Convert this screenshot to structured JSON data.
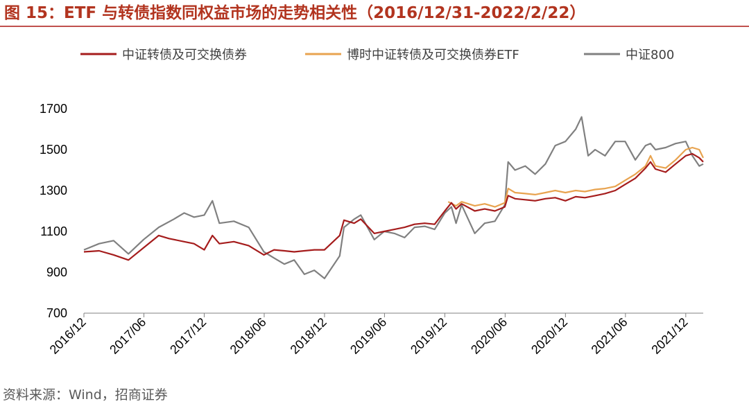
{
  "figure": {
    "title": "图 15：ETF 与转债指数同权益市场的走势相关性（2016/12/31-2022/2/22）",
    "source": "资料来源：Wind，招商证券"
  },
  "chart_data": {
    "type": "line",
    "title": "图 15：ETF 与转债指数同权益市场的走势相关性（2016/12/31-2022/2/22）",
    "xlabel": "",
    "ylabel": "",
    "x_ticks": [
      "2016/12",
      "2017/06",
      "2017/12",
      "2018/06",
      "2018/12",
      "2019/06",
      "2019/12",
      "2020/06",
      "2020/12",
      "2021/06",
      "2021/12"
    ],
    "xlim": [
      "2016/12/31",
      "2022/02/22"
    ],
    "ylim": [
      700,
      1700
    ],
    "y_ticks": [
      700,
      900,
      1100,
      1300,
      1500,
      1700
    ],
    "grid": false,
    "legend_position": "top",
    "series": [
      {
        "name": "中证转债及可交换债券",
        "color": "#a51c1c",
        "points": [
          [
            "2016/12/31",
            1000
          ],
          [
            "2017/02/15",
            1005
          ],
          [
            "2017/03/31",
            985
          ],
          [
            "2017/05/15",
            960
          ],
          [
            "2017/06/30",
            1020
          ],
          [
            "2017/08/15",
            1080
          ],
          [
            "2017/09/15",
            1065
          ],
          [
            "2017/10/31",
            1050
          ],
          [
            "2017/11/30",
            1040
          ],
          [
            "2017/12/31",
            1010
          ],
          [
            "2018/01/25",
            1080
          ],
          [
            "2018/02/15",
            1040
          ],
          [
            "2018/03/31",
            1050
          ],
          [
            "2018/05/15",
            1030
          ],
          [
            "2018/06/30",
            985
          ],
          [
            "2018/07/31",
            1010
          ],
          [
            "2018/08/31",
            1005
          ],
          [
            "2018/09/30",
            1000
          ],
          [
            "2018/10/31",
            1005
          ],
          [
            "2018/11/30",
            1010
          ],
          [
            "2018/12/31",
            1010
          ],
          [
            "2019/02/15",
            1080
          ],
          [
            "2019/02/28",
            1155
          ],
          [
            "2019/03/31",
            1140
          ],
          [
            "2019/04/20",
            1160
          ],
          [
            "2019/05/31",
            1090
          ],
          [
            "2019/06/30",
            1100
          ],
          [
            "2019/07/31",
            1110
          ],
          [
            "2019/08/31",
            1120
          ],
          [
            "2019/09/30",
            1135
          ],
          [
            "2019/10/31",
            1140
          ],
          [
            "2019/11/30",
            1135
          ],
          [
            "2019/12/31",
            1200
          ],
          [
            "2020/01/20",
            1240
          ],
          [
            "2020/02/03",
            1210
          ],
          [
            "2020/02/20",
            1235
          ],
          [
            "2020/03/31",
            1200
          ],
          [
            "2020/04/30",
            1210
          ],
          [
            "2020/05/31",
            1200
          ],
          [
            "2020/06/30",
            1220
          ],
          [
            "2020/07/10",
            1275
          ],
          [
            "2020/07/31",
            1260
          ],
          [
            "2020/08/31",
            1255
          ],
          [
            "2020/09/30",
            1250
          ],
          [
            "2020/10/31",
            1260
          ],
          [
            "2020/11/30",
            1265
          ],
          [
            "2020/12/31",
            1250
          ],
          [
            "2021/01/31",
            1270
          ],
          [
            "2021/02/28",
            1265
          ],
          [
            "2021/03/31",
            1275
          ],
          [
            "2021/04/30",
            1285
          ],
          [
            "2021/05/31",
            1300
          ],
          [
            "2021/06/30",
            1330
          ],
          [
            "2021/07/31",
            1360
          ],
          [
            "2021/08/31",
            1410
          ],
          [
            "2021/09/15",
            1440
          ],
          [
            "2021/09/30",
            1405
          ],
          [
            "2021/10/31",
            1390
          ],
          [
            "2021/11/30",
            1430
          ],
          [
            "2021/12/31",
            1470
          ],
          [
            "2022/01/20",
            1480
          ],
          [
            "2022/02/10",
            1460
          ],
          [
            "2022/02/22",
            1440
          ]
        ]
      },
      {
        "name": "博时中证转债及可交换债券ETF",
        "color": "#e8a34f",
        "points": [
          [
            "2020/01/10",
            1245
          ],
          [
            "2020/02/03",
            1225
          ],
          [
            "2020/02/20",
            1245
          ],
          [
            "2020/03/31",
            1225
          ],
          [
            "2020/04/30",
            1235
          ],
          [
            "2020/05/31",
            1220
          ],
          [
            "2020/06/30",
            1240
          ],
          [
            "2020/07/10",
            1310
          ],
          [
            "2020/07/31",
            1290
          ],
          [
            "2020/08/31",
            1285
          ],
          [
            "2020/09/30",
            1280
          ],
          [
            "2020/10/31",
            1290
          ],
          [
            "2020/11/30",
            1300
          ],
          [
            "2020/12/31",
            1290
          ],
          [
            "2021/01/31",
            1300
          ],
          [
            "2021/02/28",
            1295
          ],
          [
            "2021/03/31",
            1305
          ],
          [
            "2021/04/30",
            1310
          ],
          [
            "2021/05/31",
            1320
          ],
          [
            "2021/06/30",
            1350
          ],
          [
            "2021/07/31",
            1380
          ],
          [
            "2021/08/31",
            1420
          ],
          [
            "2021/09/15",
            1470
          ],
          [
            "2021/09/30",
            1420
          ],
          [
            "2021/10/31",
            1410
          ],
          [
            "2021/11/30",
            1450
          ],
          [
            "2021/12/31",
            1500
          ],
          [
            "2022/01/20",
            1510
          ],
          [
            "2022/02/10",
            1500
          ],
          [
            "2022/02/22",
            1460
          ]
        ]
      },
      {
        "name": "中证800",
        "color": "#808080",
        "points": [
          [
            "2016/12/31",
            1010
          ],
          [
            "2017/02/15",
            1040
          ],
          [
            "2017/03/31",
            1055
          ],
          [
            "2017/05/15",
            990
          ],
          [
            "2017/06/30",
            1060
          ],
          [
            "2017/08/15",
            1120
          ],
          [
            "2017/09/30",
            1160
          ],
          [
            "2017/10/31",
            1190
          ],
          [
            "2017/11/30",
            1170
          ],
          [
            "2017/12/31",
            1180
          ],
          [
            "2018/01/25",
            1250
          ],
          [
            "2018/02/15",
            1140
          ],
          [
            "2018/03/31",
            1150
          ],
          [
            "2018/05/15",
            1120
          ],
          [
            "2018/06/30",
            1000
          ],
          [
            "2018/07/31",
            970
          ],
          [
            "2018/08/31",
            940
          ],
          [
            "2018/09/30",
            960
          ],
          [
            "2018/10/31",
            890
          ],
          [
            "2018/11/30",
            910
          ],
          [
            "2018/12/31",
            870
          ],
          [
            "2019/02/15",
            980
          ],
          [
            "2019/02/28",
            1120
          ],
          [
            "2019/03/31",
            1160
          ],
          [
            "2019/04/20",
            1180
          ],
          [
            "2019/05/31",
            1060
          ],
          [
            "2019/06/30",
            1100
          ],
          [
            "2019/07/31",
            1090
          ],
          [
            "2019/08/31",
            1070
          ],
          [
            "2019/09/30",
            1120
          ],
          [
            "2019/10/31",
            1125
          ],
          [
            "2019/11/30",
            1110
          ],
          [
            "2019/12/31",
            1190
          ],
          [
            "2020/01/20",
            1220
          ],
          [
            "2020/02/03",
            1140
          ],
          [
            "2020/02/20",
            1230
          ],
          [
            "2020/03/31",
            1090
          ],
          [
            "2020/04/30",
            1140
          ],
          [
            "2020/05/31",
            1150
          ],
          [
            "2020/06/30",
            1230
          ],
          [
            "2020/07/10",
            1440
          ],
          [
            "2020/07/31",
            1400
          ],
          [
            "2020/08/31",
            1420
          ],
          [
            "2020/09/30",
            1380
          ],
          [
            "2020/10/31",
            1430
          ],
          [
            "2020/11/30",
            1520
          ],
          [
            "2020/12/31",
            1540
          ],
          [
            "2021/01/31",
            1600
          ],
          [
            "2021/02/18",
            1660
          ],
          [
            "2021/03/10",
            1470
          ],
          [
            "2021/03/31",
            1500
          ],
          [
            "2021/04/30",
            1470
          ],
          [
            "2021/05/31",
            1540
          ],
          [
            "2021/06/30",
            1540
          ],
          [
            "2021/07/31",
            1450
          ],
          [
            "2021/08/31",
            1520
          ],
          [
            "2021/09/15",
            1530
          ],
          [
            "2021/09/30",
            1500
          ],
          [
            "2021/10/31",
            1510
          ],
          [
            "2021/11/30",
            1530
          ],
          [
            "2021/12/31",
            1540
          ],
          [
            "2022/01/20",
            1470
          ],
          [
            "2022/02/10",
            1420
          ],
          [
            "2022/02/22",
            1430
          ]
        ]
      }
    ]
  }
}
